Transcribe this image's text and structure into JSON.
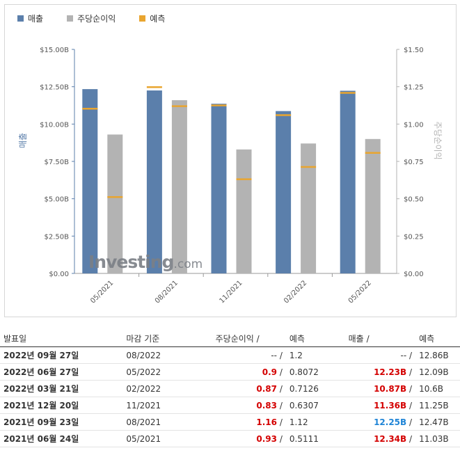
{
  "chart_data": {
    "type": "bar",
    "legend": [
      {
        "label": "매출",
        "color": "#5b7fab"
      },
      {
        "label": "주당순이익",
        "color": "#b3b3b3"
      },
      {
        "label": "예측",
        "color": "#e9a52f"
      }
    ],
    "categories": [
      "05/2021",
      "08/2021",
      "11/2021",
      "02/2022",
      "05/2022"
    ],
    "series": [
      {
        "name": "매출",
        "axis": "left",
        "values": [
          12.34,
          12.25,
          11.36,
          10.87,
          12.23
        ],
        "forecast": [
          11.03,
          12.47,
          11.25,
          10.6,
          12.09
        ]
      },
      {
        "name": "주당순이익",
        "axis": "right",
        "values": [
          0.93,
          1.16,
          0.83,
          0.87,
          0.9
        ],
        "forecast": [
          0.5111,
          1.12,
          0.6307,
          0.7126,
          0.8072
        ]
      }
    ],
    "y_left": {
      "label": "매출",
      "ticks": [
        "$0.00",
        "$2.50B",
        "$5.00B",
        "$7.50B",
        "$10.00B",
        "$12.50B",
        "$15.00B"
      ],
      "range": [
        0,
        15
      ]
    },
    "y_right": {
      "label": "주당순이익",
      "ticks": [
        "$0.00",
        "$0.25",
        "$0.50",
        "$0.75",
        "$1.00",
        "$1.25",
        "$1.50"
      ],
      "range": [
        0,
        1.5
      ]
    },
    "grid": false
  },
  "watermark": {
    "brand": "Investing",
    "suffix": ".com"
  },
  "table": {
    "headers": {
      "date": "발표일",
      "period": "마감 기준",
      "eps": "주당순이익",
      "eps_forecast": "예측",
      "revenue": "매출",
      "revenue_forecast": "예측",
      "slash": "/"
    },
    "rows": [
      {
        "date": "2022년 09월 27일",
        "period": "08/2022",
        "eps": "--",
        "eps_class": "neutral",
        "eps_forecast": "1.2",
        "revenue": "--",
        "revenue_class": "neutral",
        "revenue_forecast": "12.86B"
      },
      {
        "date": "2022년 06월 27일",
        "period": "05/2022",
        "eps": "0.9",
        "eps_class": "neg",
        "eps_forecast": "0.8072",
        "revenue": "12.23B",
        "revenue_class": "neg",
        "revenue_forecast": "12.09B"
      },
      {
        "date": "2022년 03월 21일",
        "period": "02/2022",
        "eps": "0.87",
        "eps_class": "neg",
        "eps_forecast": "0.7126",
        "revenue": "10.87B",
        "revenue_class": "neg",
        "revenue_forecast": "10.6B"
      },
      {
        "date": "2021년 12월 20일",
        "period": "11/2021",
        "eps": "0.83",
        "eps_class": "neg",
        "eps_forecast": "0.6307",
        "revenue": "11.36B",
        "revenue_class": "neg",
        "revenue_forecast": "11.25B"
      },
      {
        "date": "2021년 09월 23일",
        "period": "08/2021",
        "eps": "1.16",
        "eps_class": "neg",
        "eps_forecast": "1.12",
        "revenue": "12.25B",
        "revenue_class": "pos",
        "revenue_forecast": "12.47B"
      },
      {
        "date": "2021년 06월 24일",
        "period": "05/2021",
        "eps": "0.93",
        "eps_class": "neg",
        "eps_forecast": "0.5111",
        "revenue": "12.34B",
        "revenue_class": "neg",
        "revenue_forecast": "11.03B"
      }
    ]
  }
}
